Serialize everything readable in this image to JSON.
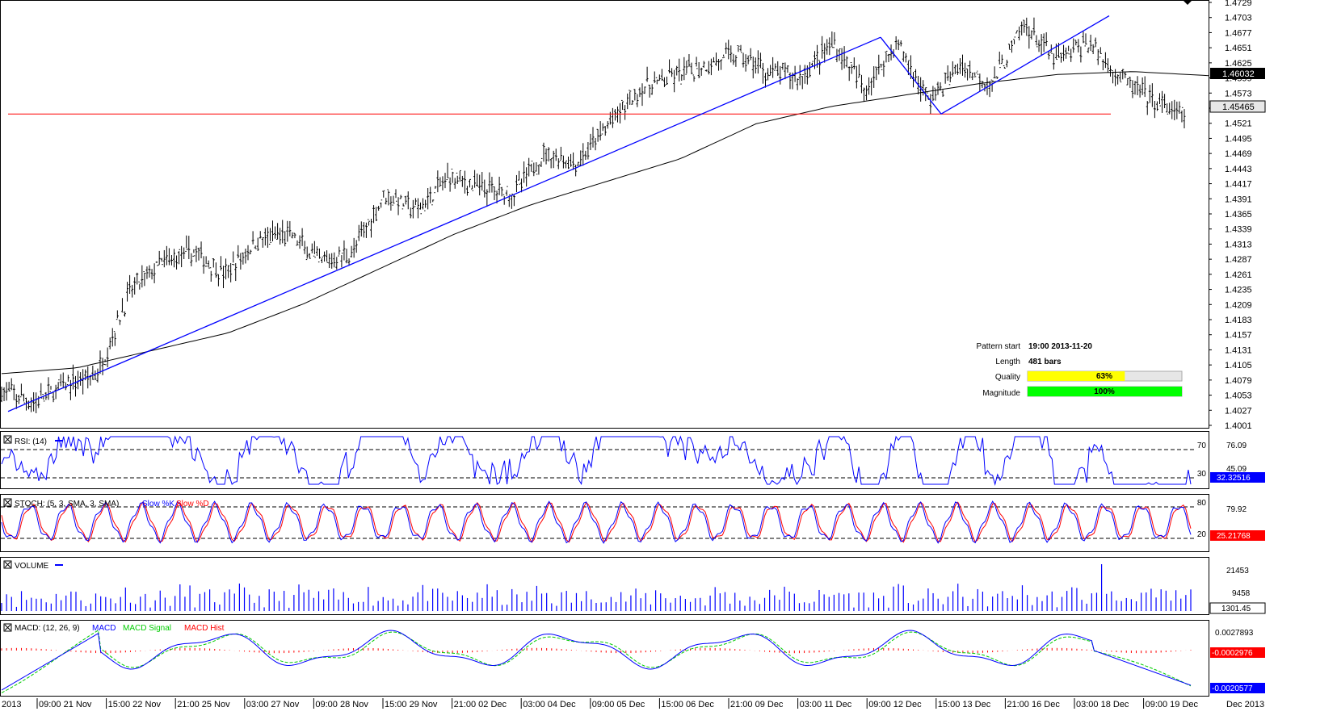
{
  "colors": {
    "candle": "#000000",
    "trend": "#0000ff",
    "resistance": "#ff0000",
    "sma": "#000000",
    "rsi": "#0000ff",
    "stoch_k": "#0000ff",
    "stoch_d": "#ff0000",
    "volume": "#0000ff",
    "macd": "#0000ff",
    "macd_signal": "#00cc00",
    "macd_hist": "#ff0000",
    "quality_bar": "#ffff00",
    "magnitude_bar": "#00ff00",
    "label_red": "#ff0000",
    "label_blue": "#0000ff"
  },
  "chart_data": {
    "type": "candlestick",
    "price_axis": {
      "ticks": [
        "1.4729",
        "1.4703",
        "1.4677",
        "1.4651",
        "1.4625",
        "1.4599",
        "1.4573",
        "1.4547",
        "1.4521",
        "1.4495",
        "1.4469",
        "1.4443",
        "1.4417",
        "1.4391",
        "1.4365",
        "1.4339",
        "1.4313",
        "1.4287",
        "1.4261",
        "1.4235",
        "1.4209",
        "1.4183",
        "1.4157",
        "1.4131",
        "1.4105",
        "1.4079",
        "1.4053",
        "1.4027",
        "1.4001"
      ],
      "ylim": [
        1.4001,
        1.4729
      ],
      "last_price_label": "1.45465",
      "sma_label": "1.46032"
    },
    "time_axis": [
      "2013",
      "09:00 21 Nov",
      "15:00 22 Nov",
      "21:00 25 Nov",
      "03:00 27 Nov",
      "09:00 28 Nov",
      "15:00 29 Nov",
      "21:00 02 Dec",
      "03:00 04 Dec",
      "09:00 05 Dec",
      "15:00 06 Dec",
      "21:00 09 Dec",
      "03:00 11 Dec",
      "09:00 12 Dec",
      "15:00 13 Dec",
      "21:00 16 Dec",
      "03:00 18 Dec",
      "09:00 19 Dec",
      "Dec 2013"
    ],
    "price_path": [
      1.406,
      1.404,
      1.407,
      1.409,
      1.423,
      1.428,
      1.43,
      1.426,
      1.432,
      1.433,
      1.428,
      1.43,
      1.44,
      1.437,
      1.443,
      1.441,
      1.44,
      1.447,
      1.445,
      1.452,
      1.458,
      1.46,
      1.462,
      1.464,
      1.461,
      1.46,
      1.466,
      1.458,
      1.466,
      1.456,
      1.462,
      1.459,
      1.469,
      1.463,
      1.466,
      1.46,
      1.456,
      1.453
    ],
    "sma_path": [
      1.409,
      1.41,
      1.413,
      1.416,
      1.421,
      1.427,
      1.433,
      1.438,
      1.442,
      1.446,
      1.452,
      1.455,
      1.457,
      1.459,
      1.4605,
      1.461,
      1.4603
    ],
    "trend_lines": [
      {
        "from": [
          1.4025
        ],
        "to": [
          1.4669
        ]
      },
      {
        "from": [
          1.4669
        ],
        "to": [
          1.4537
        ]
      },
      {
        "from": [
          1.4537
        ],
        "to": [
          1.4706
        ]
      }
    ],
    "resistance_level": 1.4537,
    "pattern_info": {
      "start_label": "Pattern start",
      "start_value": "19:00 2013-11-20",
      "length_label": "Length",
      "length_value": "481 bars",
      "quality_label": "Quality",
      "quality_value": 63,
      "quality_text": "63%",
      "magnitude_label": "Magnitude",
      "magnitude_value": 100,
      "magnitude_text": "100%"
    },
    "panels": {
      "rsi": {
        "title": "RSI: (14)",
        "upper": "70",
        "lower": "30",
        "axis_top": "76.09",
        "axis_mid": "45.09",
        "value": "32.32516"
      },
      "stoch": {
        "title": "STOCH: (5, 3, SMA, 3, SMA)",
        "k_name": "Slow %K",
        "d_name": "Slow %D",
        "upper": "80",
        "lower": "20",
        "axis_top": "79.92",
        "value": "25.21768"
      },
      "volume": {
        "title": "VOLUME",
        "axis_top": "21453",
        "axis_mid": "9458",
        "value": "1301.45"
      },
      "macd": {
        "title": "MACD: (12, 26, 9)",
        "macd_name": "MACD",
        "signal_name": "MACD Signal",
        "hist_name": "MACD Hist",
        "axis_top": "0.0027893",
        "hist_value": "-0.0002976",
        "macd_value": "-0.0020577"
      }
    }
  }
}
